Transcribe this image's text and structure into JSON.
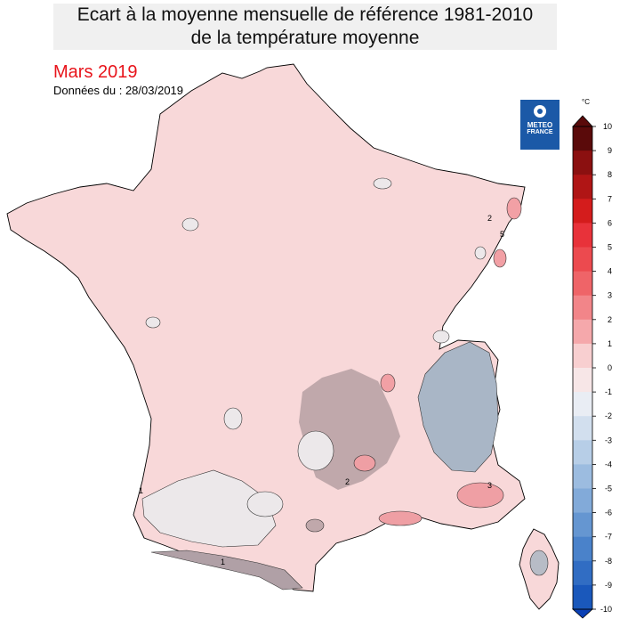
{
  "title": {
    "line1": "Ecart à la moyenne mensuelle de référence 1981-2010",
    "line2": "de la température moyenne"
  },
  "period": "Mars 2019",
  "data_date": "Données du : 28/03/2019",
  "logo": {
    "line1": "METEO",
    "line2": "FRANCE"
  },
  "legend": {
    "unit": "°C",
    "levels": [
      10,
      9,
      8,
      7,
      6,
      5,
      4,
      3,
      2,
      1,
      0,
      -1,
      -2,
      -3,
      -4,
      -5,
      -6,
      -7,
      -8,
      -9,
      -10
    ],
    "colors": [
      "#5a0a0a",
      "#8b1010",
      "#b01515",
      "#d41c1c",
      "#e8323a",
      "#ec4a4f",
      "#ef6468",
      "#f28589",
      "#f5a8ab",
      "#f8cfd0",
      "#f7e6e7",
      "#e9edf4",
      "#d2dfee",
      "#b7cee7",
      "#9cbce0",
      "#82aad9",
      "#6596d1",
      "#4a82ca",
      "#316dc3",
      "#1a58bb",
      "#0a40b5"
    ]
  },
  "map": {
    "contour_labels": [
      "1",
      "2",
      "3",
      "5",
      "1",
      "2"
    ],
    "colors": {
      "base": "#f8d8d9",
      "cool": "#ece8ea",
      "relief": "#c0a8ab",
      "cold": "#a9b6c6",
      "warm": "#ef9fa4",
      "border": "#000000"
    }
  }
}
